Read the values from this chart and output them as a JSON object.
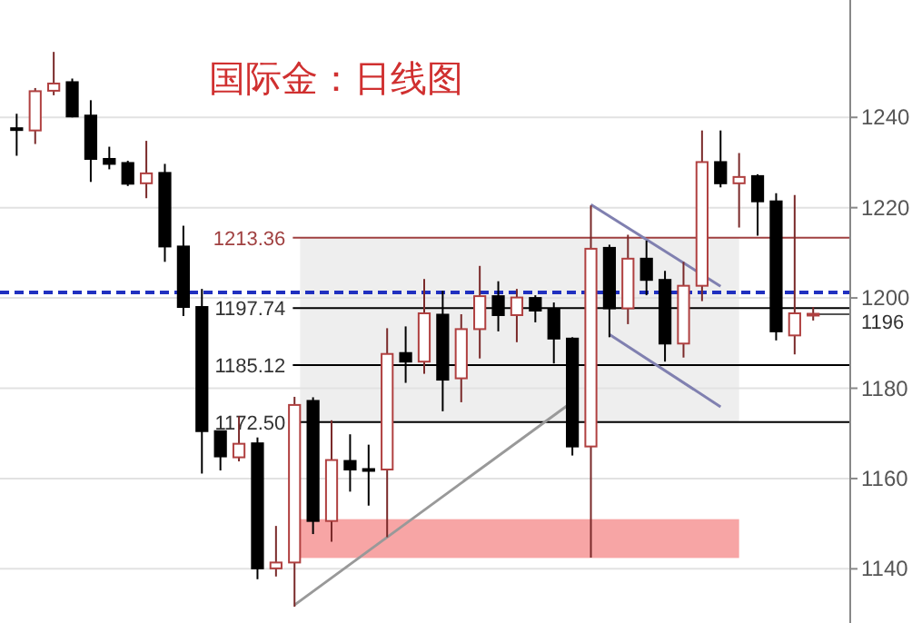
{
  "chart_data": {
    "type": "candlestick",
    "title": "国际金：日线图",
    "categories": [
      null,
      null,
      null,
      null,
      null,
      null,
      null,
      null,
      null,
      null,
      null,
      null,
      null,
      null,
      null,
      null,
      null,
      null,
      null,
      null,
      null,
      null,
      null,
      null,
      null,
      null,
      null,
      null,
      null,
      null,
      null,
      null,
      null,
      null,
      null,
      null,
      null,
      null,
      null,
      null,
      null,
      null,
      null,
      null
    ],
    "ohlc": [
      [
        1237.6,
        1240.8,
        1231.5,
        1237.4
      ],
      [
        1237.1,
        1246.5,
        1234.1,
        1245.8
      ],
      [
        1245.9,
        1254.5,
        1244.9,
        1247.5
      ],
      [
        1247.8,
        1248.6,
        1240.0,
        1240.2
      ],
      [
        1240.4,
        1243.8,
        1225.7,
        1230.8
      ],
      [
        1230.8,
        1233.5,
        1228.5,
        1229.7
      ],
      [
        1229.9,
        1230.4,
        1224.8,
        1225.3
      ],
      [
        1225.4,
        1234.8,
        1222.1,
        1227.6
      ],
      [
        1227.7,
        1229.7,
        1208.0,
        1211.4
      ],
      [
        1211.4,
        1216.0,
        1196.0,
        1198.0
      ],
      [
        1198.0,
        1202.0,
        1161.1,
        1170.5
      ],
      [
        1170.5,
        1170.5,
        1161.8,
        1164.9
      ],
      [
        1164.7,
        1173.8,
        1163.8,
        1167.7
      ],
      [
        1167.8,
        1169.1,
        1137.7,
        1140.1
      ],
      [
        1140.1,
        1149.5,
        1138.3,
        1141.4
      ],
      [
        1141.4,
        1178.1,
        1131.6,
        1176.3
      ],
      [
        1177.2,
        1178.0,
        1147.7,
        1150.6
      ],
      [
        1150.6,
        1172.9,
        1146.0,
        1164.1
      ],
      [
        1163.9,
        1169.8,
        1157.1,
        1162.0
      ],
      [
        1162.1,
        1167.5,
        1154.0,
        1162.0
      ],
      [
        1162.0,
        1193.3,
        1147.0,
        1187.6
      ],
      [
        1187.8,
        1193.7,
        1181.2,
        1185.9
      ],
      [
        1185.9,
        1204.2,
        1183.2,
        1196.6
      ],
      [
        1196.3,
        1201.6,
        1174.9,
        1181.9
      ],
      [
        1182.2,
        1196.4,
        1176.9,
        1193.1
      ],
      [
        1193.1,
        1207.1,
        1186.6,
        1200.4
      ],
      [
        1200.4,
        1203.7,
        1192.6,
        1196.2
      ],
      [
        1196.2,
        1202.0,
        1190.2,
        1200.1
      ],
      [
        1200.0,
        1200.6,
        1194.6,
        1197.2
      ],
      [
        1197.6,
        1199.0,
        1185.5,
        1191.0
      ],
      [
        1191.0,
        1191.3,
        1165.1,
        1167.1
      ],
      [
        1167.1,
        1220.5,
        1142.5,
        1210.9
      ],
      [
        1211.1,
        1211.8,
        1191.3,
        1197.7
      ],
      [
        1197.7,
        1214.0,
        1194.2,
        1208.7
      ],
      [
        1208.7,
        1212.7,
        1200.6,
        1204.0
      ],
      [
        1204.0,
        1206.0,
        1185.9,
        1189.9
      ],
      [
        1189.9,
        1208.0,
        1186.8,
        1202.7
      ],
      [
        1202.7,
        1237.1,
        1199.3,
        1230.1
      ],
      [
        1230.1,
        1237.1,
        1224.5,
        1225.4
      ],
      [
        1225.4,
        1232.1,
        1215.6,
        1226.8
      ],
      [
        1227.0,
        1227.4,
        1213.8,
        1221.4
      ],
      [
        1221.4,
        1223.2,
        1190.6,
        1192.6
      ],
      [
        1191.7,
        1222.8,
        1187.5,
        1196.6
      ],
      [
        1196.4,
        1198.0,
        1195.0,
        1196.5
      ]
    ],
    "series": [
      {
        "type": "line",
        "color": "#999999",
        "values": [
          null,
          null,
          null,
          null,
          null,
          null,
          null,
          null,
          null,
          null,
          null,
          null,
          null,
          null,
          null,
          1132,
          null,
          null,
          null,
          null,
          null,
          null,
          null,
          null,
          null,
          null,
          null,
          null,
          null,
          null,
          1177,
          null,
          null,
          null,
          null,
          null,
          null,
          null,
          null,
          null,
          null,
          null,
          null,
          null
        ]
      },
      {
        "type": "line",
        "color": "#8080b0",
        "values": [
          null,
          null,
          null,
          null,
          null,
          null,
          null,
          null,
          null,
          null,
          null,
          null,
          null,
          null,
          null,
          null,
          null,
          null,
          null,
          null,
          null,
          null,
          null,
          null,
          null,
          null,
          null,
          null,
          null,
          null,
          null,
          1220.7,
          null,
          null,
          null,
          null,
          null,
          null,
          1202.6,
          null,
          null,
          null,
          null,
          null
        ]
      },
      {
        "type": "line",
        "color": "#8080b0",
        "values": [
          null,
          null,
          null,
          null,
          null,
          null,
          null,
          null,
          null,
          null,
          null,
          null,
          null,
          null,
          null,
          null,
          null,
          null,
          null,
          null,
          null,
          null,
          null,
          null,
          null,
          null,
          null,
          null,
          null,
          null,
          null,
          null,
          1191.9,
          null,
          null,
          null,
          null,
          null,
          1175.9,
          null,
          null,
          null,
          null,
          null
        ]
      }
    ],
    "ylim": [
      1128,
      1266
    ],
    "yticks": [
      1140,
      1160,
      1180,
      1200,
      1220,
      1240
    ],
    "grid": "y",
    "ref_lines": [
      {
        "axis": "y",
        "value": 1213.36,
        "label": "1213.36",
        "color": "#a04040"
      },
      {
        "axis": "y",
        "value": 1197.74,
        "label": "1197.74",
        "color": "#000000"
      },
      {
        "axis": "y",
        "value": 1185.12,
        "label": "1185.12",
        "color": "#000000"
      },
      {
        "axis": "y",
        "value": 1172.5,
        "label": "1172.50",
        "color": "#000000"
      },
      {
        "axis": "y",
        "value": 1201.2,
        "color": "#2030c0",
        "line_style": "dashed"
      },
      {
        "axis": "y",
        "value": 1196.4,
        "label": "1196",
        "color": "#555555"
      }
    ],
    "bands": [
      {
        "axis": "y",
        "from": 1172.5,
        "to": 1213.36,
        "color": "#eeeeee"
      },
      {
        "axis": "y",
        "from": 1142.4,
        "to": 1151.0,
        "color": "#f7a5a5"
      }
    ]
  }
}
